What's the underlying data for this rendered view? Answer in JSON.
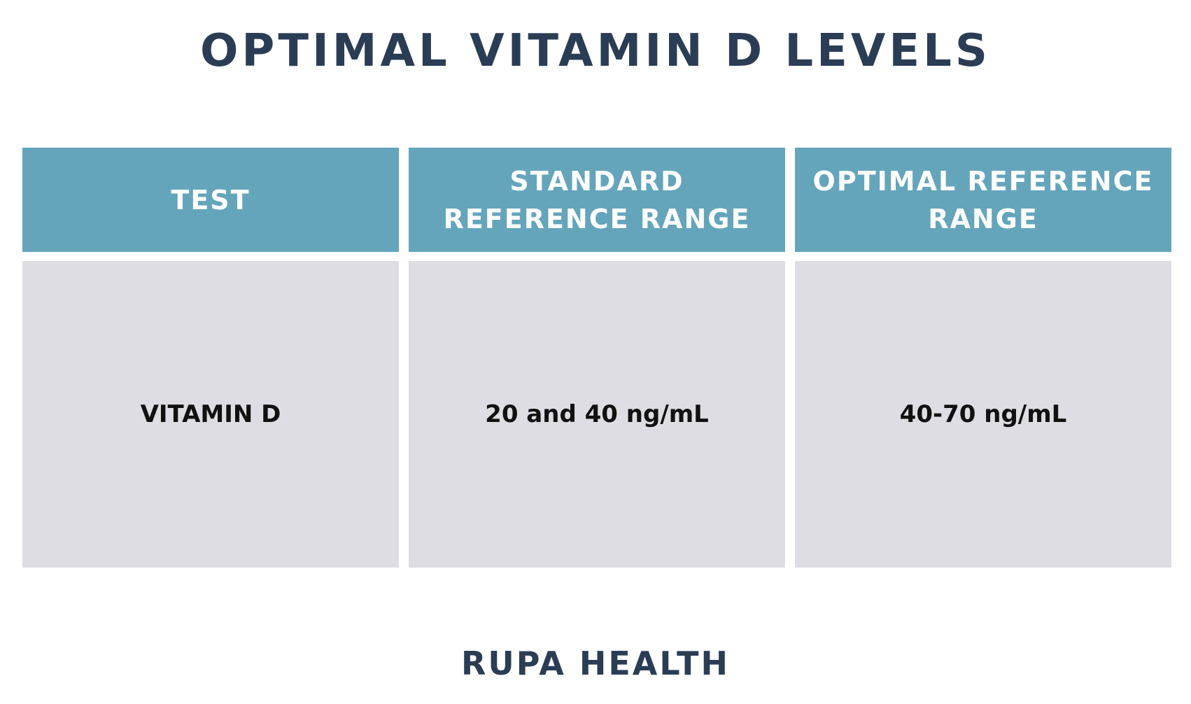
{
  "title": "OPTIMAL VITAMIN D LEVELS",
  "table": {
    "headers": [
      "TEST",
      "STANDARD REFERENCE RANGE",
      "OPTIMAL REFERENCE RANGE"
    ],
    "rows": [
      [
        "VITAMIN D",
        "20 and 40 ng/mL",
        "40-70 ng/mL"
      ]
    ]
  },
  "footer": "RUPA HEALTH",
  "colors": {
    "title": "#2b3d55",
    "header_bg": "#64a5bc",
    "header_text": "#ffffff",
    "cell_bg": "#dedde4",
    "cell_text": "#111111"
  }
}
